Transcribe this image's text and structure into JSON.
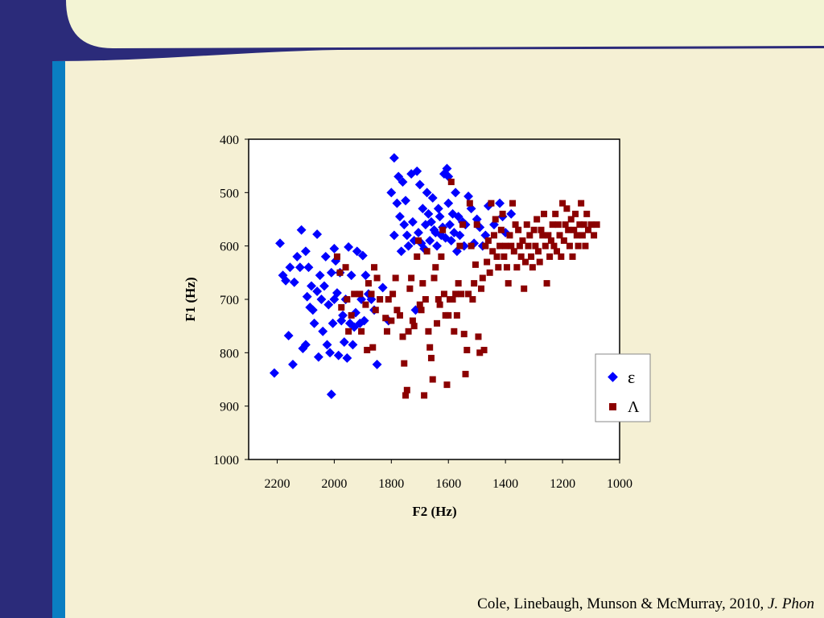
{
  "slide": {
    "citation_authors": "Cole, Linebaugh, Munson & McMurray, 2010, ",
    "citation_journal": "J. Phon",
    "colors": {
      "background": "#f5f0d4",
      "sidebar_dark": "#2b2b7a",
      "sidebar_accent": "#0a7ec2",
      "header_fill": "#f3f4d4"
    }
  },
  "chart_data": {
    "type": "scatter",
    "title": "",
    "xlabel": "F2 (Hz)",
    "ylabel": "F1 (Hz)",
    "xlim": [
      2300,
      1000
    ],
    "ylim": [
      1000,
      400
    ],
    "x_reversed": true,
    "y_reversed": true,
    "x_ticks": [
      2200,
      2000,
      1800,
      1600,
      1400,
      1200,
      1000
    ],
    "y_ticks": [
      400,
      500,
      600,
      700,
      800,
      900,
      1000
    ],
    "grid": false,
    "legend_position": "right",
    "series": [
      {
        "name": "ε",
        "marker": "diamond",
        "color": "#0000ff",
        "points": [
          [
            2210,
            838
          ],
          [
            2190,
            595
          ],
          [
            2180,
            655
          ],
          [
            2170,
            665
          ],
          [
            2155,
            640
          ],
          [
            2160,
            768
          ],
          [
            2145,
            822
          ],
          [
            2140,
            668
          ],
          [
            2130,
            620
          ],
          [
            2120,
            640
          ],
          [
            2115,
            570
          ],
          [
            2110,
            792
          ],
          [
            2100,
            610
          ],
          [
            2100,
            785
          ],
          [
            2095,
            695
          ],
          [
            2090,
            640
          ],
          [
            2085,
            715
          ],
          [
            2080,
            675
          ],
          [
            2075,
            720
          ],
          [
            2070,
            745
          ],
          [
            2060,
            578
          ],
          [
            2060,
            685
          ],
          [
            2055,
            808
          ],
          [
            2050,
            655
          ],
          [
            2045,
            700
          ],
          [
            2040,
            760
          ],
          [
            2035,
            675
          ],
          [
            2030,
            620
          ],
          [
            2025,
            785
          ],
          [
            2020,
            710
          ],
          [
            2015,
            800
          ],
          [
            2010,
            878
          ],
          [
            2010,
            650
          ],
          [
            2005,
            745
          ],
          [
            2000,
            605
          ],
          [
            2000,
            700
          ],
          [
            1995,
            628
          ],
          [
            1990,
            688
          ],
          [
            1985,
            805
          ],
          [
            1980,
            650
          ],
          [
            1975,
            740
          ],
          [
            1970,
            730
          ],
          [
            1965,
            780
          ],
          [
            1960,
            700
          ],
          [
            1955,
            810
          ],
          [
            1950,
            602
          ],
          [
            1945,
            745
          ],
          [
            1940,
            655
          ],
          [
            1935,
            785
          ],
          [
            1930,
            752
          ],
          [
            1925,
            725
          ],
          [
            1920,
            610
          ],
          [
            1910,
            745
          ],
          [
            1905,
            700
          ],
          [
            1900,
            618
          ],
          [
            1895,
            740
          ],
          [
            1890,
            655
          ],
          [
            1880,
            690
          ],
          [
            1870,
            700
          ],
          [
            1860,
            720
          ],
          [
            1850,
            822
          ],
          [
            1830,
            678
          ],
          [
            1810,
            740
          ],
          [
            1790,
            435
          ],
          [
            1800,
            500
          ],
          [
            1790,
            580
          ],
          [
            1780,
            520
          ],
          [
            1775,
            470
          ],
          [
            1770,
            545
          ],
          [
            1765,
            610
          ],
          [
            1760,
            480
          ],
          [
            1755,
            560
          ],
          [
            1750,
            515
          ],
          [
            1745,
            580
          ],
          [
            1740,
            600
          ],
          [
            1730,
            465
          ],
          [
            1725,
            555
          ],
          [
            1720,
            590
          ],
          [
            1715,
            720
          ],
          [
            1710,
            460
          ],
          [
            1705,
            575
          ],
          [
            1700,
            485
          ],
          [
            1695,
            595
          ],
          [
            1690,
            530
          ],
          [
            1685,
            605
          ],
          [
            1680,
            560
          ],
          [
            1675,
            500
          ],
          [
            1670,
            540
          ],
          [
            1665,
            590
          ],
          [
            1660,
            555
          ],
          [
            1655,
            510
          ],
          [
            1650,
            570
          ],
          [
            1645,
            575
          ],
          [
            1640,
            600
          ],
          [
            1635,
            530
          ],
          [
            1630,
            545
          ],
          [
            1625,
            580
          ],
          [
            1620,
            565
          ],
          [
            1615,
            465
          ],
          [
            1610,
            585
          ],
          [
            1605,
            455
          ],
          [
            1600,
            520
          ],
          [
            1600,
            470
          ],
          [
            1595,
            560
          ],
          [
            1590,
            590
          ],
          [
            1585,
            540
          ],
          [
            1580,
            575
          ],
          [
            1575,
            500
          ],
          [
            1570,
            610
          ],
          [
            1565,
            545
          ],
          [
            1560,
            580
          ],
          [
            1550,
            555
          ],
          [
            1545,
            600
          ],
          [
            1540,
            560
          ],
          [
            1530,
            507
          ],
          [
            1520,
            530
          ],
          [
            1510,
            595
          ],
          [
            1500,
            550
          ],
          [
            1490,
            565
          ],
          [
            1480,
            600
          ],
          [
            1470,
            580
          ],
          [
            1460,
            525
          ],
          [
            1440,
            560
          ],
          [
            1420,
            520
          ],
          [
            1410,
            545
          ],
          [
            1400,
            575
          ],
          [
            1380,
            540
          ]
        ]
      },
      {
        "name": "Λ",
        "marker": "square",
        "color": "#8b0000",
        "points": [
          [
            1990,
            620
          ],
          [
            1980,
            650
          ],
          [
            1975,
            715
          ],
          [
            1960,
            640
          ],
          [
            1955,
            700
          ],
          [
            1950,
            760
          ],
          [
            1940,
            730
          ],
          [
            1930,
            690
          ],
          [
            1910,
            690
          ],
          [
            1905,
            760
          ],
          [
            1890,
            710
          ],
          [
            1885,
            795
          ],
          [
            1880,
            670
          ],
          [
            1870,
            690
          ],
          [
            1865,
            790
          ],
          [
            1860,
            640
          ],
          [
            1855,
            720
          ],
          [
            1850,
            660
          ],
          [
            1840,
            700
          ],
          [
            1820,
            735
          ],
          [
            1815,
            760
          ],
          [
            1810,
            700
          ],
          [
            1800,
            740
          ],
          [
            1795,
            690
          ],
          [
            1785,
            660
          ],
          [
            1780,
            720
          ],
          [
            1770,
            730
          ],
          [
            1760,
            770
          ],
          [
            1755,
            820
          ],
          [
            1750,
            880
          ],
          [
            1745,
            870
          ],
          [
            1740,
            760
          ],
          [
            1735,
            680
          ],
          [
            1730,
            660
          ],
          [
            1725,
            740
          ],
          [
            1720,
            750
          ],
          [
            1710,
            620
          ],
          [
            1705,
            590
          ],
          [
            1700,
            710
          ],
          [
            1695,
            720
          ],
          [
            1690,
            670
          ],
          [
            1685,
            880
          ],
          [
            1680,
            700
          ],
          [
            1675,
            610
          ],
          [
            1670,
            760
          ],
          [
            1665,
            790
          ],
          [
            1660,
            810
          ],
          [
            1655,
            850
          ],
          [
            1650,
            660
          ],
          [
            1645,
            640
          ],
          [
            1640,
            745
          ],
          [
            1635,
            700
          ],
          [
            1630,
            710
          ],
          [
            1625,
            620
          ],
          [
            1620,
            570
          ],
          [
            1615,
            690
          ],
          [
            1610,
            730
          ],
          [
            1605,
            860
          ],
          [
            1600,
            730
          ],
          [
            1595,
            700
          ],
          [
            1590,
            480
          ],
          [
            1585,
            700
          ],
          [
            1580,
            760
          ],
          [
            1575,
            690
          ],
          [
            1570,
            730
          ],
          [
            1565,
            670
          ],
          [
            1560,
            600
          ],
          [
            1555,
            690
          ],
          [
            1550,
            560
          ],
          [
            1545,
            765
          ],
          [
            1540,
            840
          ],
          [
            1535,
            795
          ],
          [
            1530,
            690
          ],
          [
            1525,
            520
          ],
          [
            1520,
            600
          ],
          [
            1515,
            700
          ],
          [
            1510,
            670
          ],
          [
            1505,
            635
          ],
          [
            1500,
            560
          ],
          [
            1495,
            770
          ],
          [
            1490,
            800
          ],
          [
            1485,
            680
          ],
          [
            1480,
            660
          ],
          [
            1475,
            795
          ],
          [
            1470,
            600
          ],
          [
            1465,
            630
          ],
          [
            1460,
            590
          ],
          [
            1455,
            650
          ],
          [
            1450,
            520
          ],
          [
            1445,
            610
          ],
          [
            1440,
            580
          ],
          [
            1435,
            550
          ],
          [
            1430,
            620
          ],
          [
            1425,
            640
          ],
          [
            1420,
            600
          ],
          [
            1415,
            570
          ],
          [
            1410,
            540
          ],
          [
            1405,
            620
          ],
          [
            1400,
            600
          ],
          [
            1395,
            640
          ],
          [
            1390,
            670
          ],
          [
            1385,
            580
          ],
          [
            1380,
            600
          ],
          [
            1375,
            520
          ],
          [
            1370,
            610
          ],
          [
            1365,
            560
          ],
          [
            1360,
            640
          ],
          [
            1355,
            570
          ],
          [
            1350,
            600
          ],
          [
            1345,
            620
          ],
          [
            1340,
            590
          ],
          [
            1335,
            680
          ],
          [
            1330,
            630
          ],
          [
            1325,
            560
          ],
          [
            1320,
            600
          ],
          [
            1315,
            580
          ],
          [
            1310,
            620
          ],
          [
            1305,
            640
          ],
          [
            1300,
            570
          ],
          [
            1295,
            600
          ],
          [
            1290,
            550
          ],
          [
            1285,
            610
          ],
          [
            1280,
            630
          ],
          [
            1275,
            570
          ],
          [
            1270,
            580
          ],
          [
            1265,
            540
          ],
          [
            1260,
            600
          ],
          [
            1255,
            670
          ],
          [
            1250,
            580
          ],
          [
            1245,
            620
          ],
          [
            1240,
            590
          ],
          [
            1235,
            560
          ],
          [
            1230,
            600
          ],
          [
            1225,
            540
          ],
          [
            1220,
            610
          ],
          [
            1215,
            560
          ],
          [
            1210,
            580
          ],
          [
            1205,
            620
          ],
          [
            1200,
            520
          ],
          [
            1195,
            590
          ],
          [
            1190,
            560
          ],
          [
            1185,
            530
          ],
          [
            1180,
            570
          ],
          [
            1175,
            600
          ],
          [
            1170,
            550
          ],
          [
            1165,
            620
          ],
          [
            1160,
            570
          ],
          [
            1155,
            540
          ],
          [
            1150,
            580
          ],
          [
            1145,
            600
          ],
          [
            1140,
            560
          ],
          [
            1135,
            520
          ],
          [
            1130,
            580
          ],
          [
            1125,
            560
          ],
          [
            1120,
            600
          ],
          [
            1115,
            540
          ],
          [
            1110,
            570
          ],
          [
            1100,
            560
          ],
          [
            1090,
            580
          ],
          [
            1080,
            560
          ]
        ]
      }
    ]
  }
}
